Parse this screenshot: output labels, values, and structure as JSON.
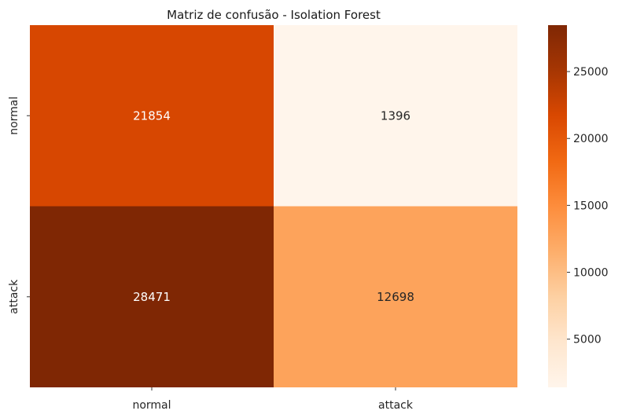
{
  "chart_data": {
    "type": "heatmap",
    "title": "Matriz de confusão - Isolation Forest",
    "xlabel": "",
    "ylabel": "",
    "x_categories": [
      "normal",
      "attack"
    ],
    "y_categories": [
      "normal",
      "attack"
    ],
    "values": [
      [
        21854,
        1396
      ],
      [
        28471,
        12698
      ]
    ],
    "colormap": "Oranges",
    "colorbar": {
      "min": 1396,
      "max": 28471,
      "ticks": [
        5000,
        10000,
        15000,
        20000,
        25000
      ]
    },
    "annotations": true
  }
}
